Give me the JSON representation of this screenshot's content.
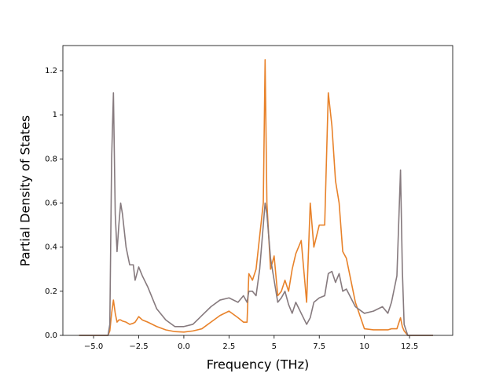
{
  "chart_data": {
    "type": "line",
    "xlabel": "Frequency (THz)",
    "ylabel": "Partial Density of States",
    "x": [
      -5.8,
      -4.2,
      -4.1,
      -4.0,
      -3.9,
      -3.8,
      -3.7,
      -3.6,
      -3.5,
      -3.4,
      -3.2,
      -3.0,
      -2.8,
      -2.7,
      -2.5,
      -2.3,
      -2.0,
      -1.5,
      -1.0,
      -0.5,
      0,
      0.5,
      1.0,
      1.5,
      2.0,
      2.5,
      3.0,
      3.3,
      3.5,
      3.6,
      3.8,
      4.0,
      4.2,
      4.4,
      4.5,
      4.6,
      4.8,
      5.0,
      5.2,
      5.4,
      5.6,
      5.8,
      6.0,
      6.2,
      6.5,
      6.8,
      7.0,
      7.2,
      7.5,
      7.8,
      8.0,
      8.2,
      8.4,
      8.6,
      8.8,
      9.0,
      9.5,
      10.0,
      10.5,
      11.0,
      11.3,
      11.5,
      11.8,
      12.0,
      12.1,
      12.2,
      12.4,
      13.8
    ],
    "series": [
      {
        "color": "#e8822a",
        "values": [
          0,
          0,
          0.02,
          0.1,
          0.16,
          0.1,
          0.06,
          0.07,
          0.07,
          0.065,
          0.06,
          0.05,
          0.055,
          0.06,
          0.085,
          0.07,
          0.06,
          0.04,
          0.025,
          0.017,
          0.015,
          0.02,
          0.03,
          0.06,
          0.09,
          0.11,
          0.08,
          0.06,
          0.06,
          0.28,
          0.25,
          0.3,
          0.45,
          0.6,
          1.25,
          0.6,
          0.3,
          0.36,
          0.18,
          0.2,
          0.25,
          0.2,
          0.3,
          0.37,
          0.43,
          0.15,
          0.6,
          0.4,
          0.5,
          0.5,
          1.1,
          0.95,
          0.7,
          0.6,
          0.38,
          0.35,
          0.15,
          0.03,
          0.025,
          0.025,
          0.025,
          0.03,
          0.03,
          0.08,
          0.04,
          0.02,
          0,
          0
        ]
      },
      {
        "color": "#867a7e",
        "values": [
          0,
          0,
          0.05,
          0.8,
          1.1,
          0.55,
          0.38,
          0.5,
          0.6,
          0.55,
          0.4,
          0.32,
          0.32,
          0.25,
          0.31,
          0.27,
          0.22,
          0.12,
          0.07,
          0.04,
          0.04,
          0.05,
          0.09,
          0.13,
          0.16,
          0.17,
          0.15,
          0.18,
          0.15,
          0.2,
          0.2,
          0.18,
          0.3,
          0.5,
          0.6,
          0.55,
          0.35,
          0.25,
          0.15,
          0.17,
          0.2,
          0.14,
          0.1,
          0.15,
          0.1,
          0.05,
          0.08,
          0.15,
          0.17,
          0.18,
          0.28,
          0.29,
          0.24,
          0.28,
          0.2,
          0.21,
          0.13,
          0.1,
          0.11,
          0.13,
          0.1,
          0.15,
          0.27,
          0.75,
          0.3,
          0.05,
          0,
          0
        ]
      }
    ],
    "xlim": [
      -6.7,
      14.89
    ],
    "ylim": [
      0,
      1.314
    ],
    "xticks": [
      {
        "value": -5,
        "label": "−5.0"
      },
      {
        "value": -2.5,
        "label": "−2.5"
      },
      {
        "value": 0,
        "label": "0.0"
      },
      2.5,
      5,
      7.5,
      10,
      12.5
    ],
    "yticks": [
      {
        "value": 0,
        "label": "0.0"
      },
      0.2,
      0.4,
      0.6,
      0.8,
      1,
      1.2
    ]
  }
}
